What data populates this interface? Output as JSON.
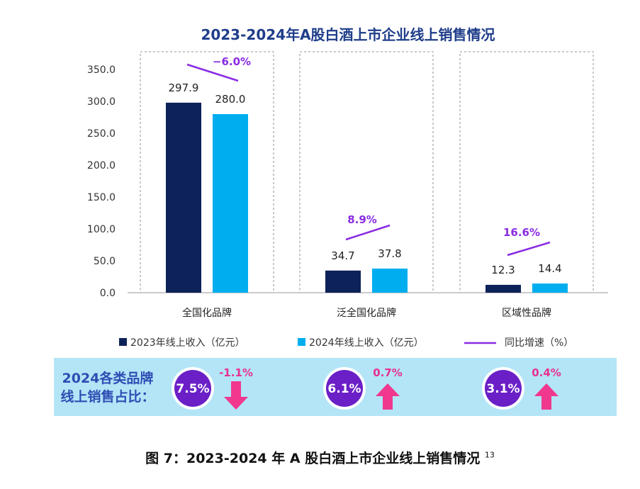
{
  "chart_data": {
    "type": "bar",
    "title": "2023-2024年A股白酒上市企业线上销售情况",
    "categories": [
      "全国化品牌",
      "泛全国化品牌",
      "区域性品牌"
    ],
    "series": [
      {
        "name": "2023年线上收入（亿元）",
        "values": [
          297.9,
          34.7,
          12.3
        ],
        "color": "#0d2259"
      },
      {
        "name": "2024年线上收入（亿元）",
        "values": [
          280.0,
          37.8,
          14.4
        ],
        "color": "#00aeef"
      }
    ],
    "yoy_series_name": "同比增速（%）",
    "yoy_labels": [
      "−6.0%",
      "8.9%",
      "16.6%"
    ],
    "yoy_color": "#8a2be2",
    "ylim": [
      0,
      350
    ],
    "y_ticks": [
      "0.0",
      "50.0",
      "100.0",
      "150.0",
      "200.0",
      "250.0",
      "300.0",
      "350.0"
    ],
    "value_labels": [
      [
        "297.9",
        "280.0"
      ],
      [
        "34.7",
        "37.8"
      ],
      [
        "12.3",
        "14.4"
      ]
    ],
    "legend_position": "bottom",
    "grid": false
  },
  "share_strip": {
    "title_line1": "2024各类品牌",
    "title_line2": "线上销售占比：",
    "items": [
      {
        "share": "7.5%",
        "change": "-1.1%",
        "direction": "down"
      },
      {
        "share": "6.1%",
        "change": "0.7%",
        "direction": "up"
      },
      {
        "share": "3.1%",
        "change": "0.4%",
        "direction": "up"
      }
    ],
    "strip_color": "#b3e5f7",
    "circle_color": "#6b1fc7",
    "arrow_color": "#f0388f"
  },
  "caption": {
    "text": "图 7：2023-2024 年 A 股白酒上市企业线上销售情况",
    "note": "13"
  }
}
